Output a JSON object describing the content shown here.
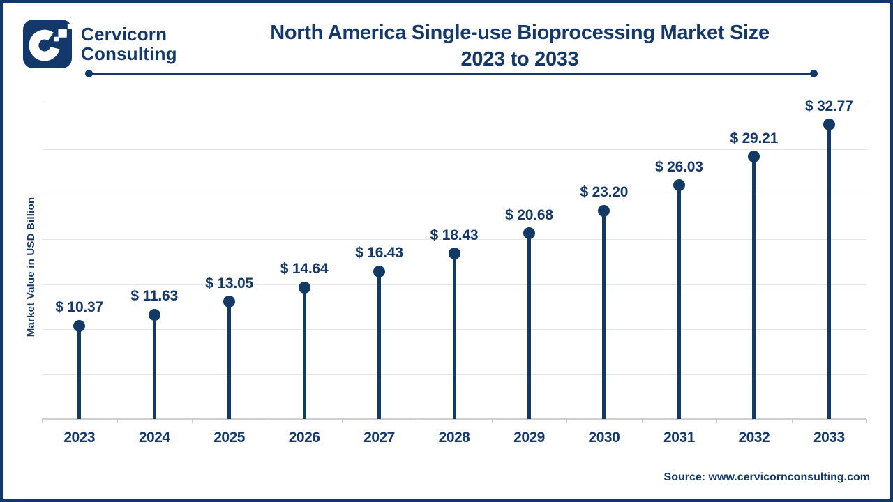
{
  "brand": {
    "line1": "Cervicorn",
    "line2": "Consulting"
  },
  "header": {
    "title_line1": "North America Single-use Bioprocessing Market Size",
    "title_line2": "2023 to 2033"
  },
  "source": "Source: www.cervicornconsulting.com",
  "colors": {
    "navy": "#14386A",
    "point": "#123A64",
    "gridline": "#E5E5E5",
    "axis_line": "#CFCFCF",
    "background": "#FFFFFF"
  },
  "chart_data": {
    "type": "lollipop",
    "title": "North America Single-use Bioprocessing Market Size 2023 to 2033",
    "categories": [
      "2023",
      "2024",
      "2025",
      "2026",
      "2027",
      "2028",
      "2029",
      "2030",
      "2031",
      "2032",
      "2033"
    ],
    "values": [
      10.37,
      11.63,
      13.05,
      14.64,
      16.43,
      18.43,
      20.68,
      23.2,
      26.03,
      29.21,
      32.77
    ],
    "value_label_prefix": "$ ",
    "value_label_decimals": 2,
    "xlabel": "",
    "ylabel": "Market Value in USD Billion",
    "units": "USD Billion",
    "ylim": [
      0,
      35
    ],
    "gridline_interval": 5,
    "y_tick_labels_shown": false,
    "grid": "horizontal",
    "legend": "none"
  }
}
